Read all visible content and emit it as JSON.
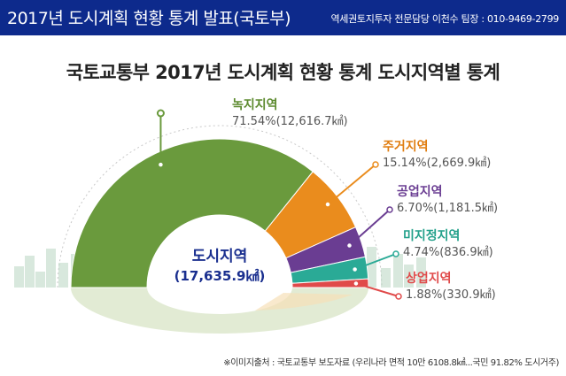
{
  "header": {
    "title": "2017년 도시계획 현황 통계 발표(국토부)",
    "contact": "역세권토지투자 전문담당 이천수 팀장 : 010-9469-2799"
  },
  "source": "※이미지출처 : 국토교통부 보도자료 (우리나라 면적 10만 6108.8㎢...국민 91.82% 도시거주)",
  "colors": {
    "header_bg": "#0d2a8c",
    "green": "#6a9a3d",
    "orange": "#ea8c1d",
    "purple": "#6a3d92",
    "teal": "#2aaa96",
    "red": "#e04a4a"
  },
  "chart_data": {
    "type": "pie",
    "title": "국토교통부 2017년 도시계획 현황 통계 도시지역별 통계",
    "center_label": "도시지역",
    "center_value": "(17,635.9㎢)",
    "slices": [
      {
        "name": "녹지지역",
        "percent": 71.54,
        "area_km2": 12616.7,
        "value_text": "71.54%(12,616.7㎢)",
        "color": "#6a9a3d",
        "label_color": "#5c8a2e"
      },
      {
        "name": "주거지역",
        "percent": 15.14,
        "area_km2": 2669.9,
        "value_text": "15.14%(2,669.9㎢)",
        "color": "#ea8c1d",
        "label_color": "#e07d10"
      },
      {
        "name": "공업지역",
        "percent": 6.7,
        "area_km2": 1181.5,
        "value_text": "6.70%(1,181.5㎢)",
        "color": "#6a3d92",
        "label_color": "#6a3d92"
      },
      {
        "name": "미지정지역",
        "percent": 4.74,
        "area_km2": 836.9,
        "value_text": "4.74%(836.9㎢)",
        "color": "#2aaa96",
        "label_color": "#22a08a"
      },
      {
        "name": "상업지역",
        "percent": 1.88,
        "area_km2": 330.9,
        "value_text": "1.88%(330.9㎢)",
        "color": "#e04a4a",
        "label_color": "#e04a4a"
      }
    ]
  }
}
